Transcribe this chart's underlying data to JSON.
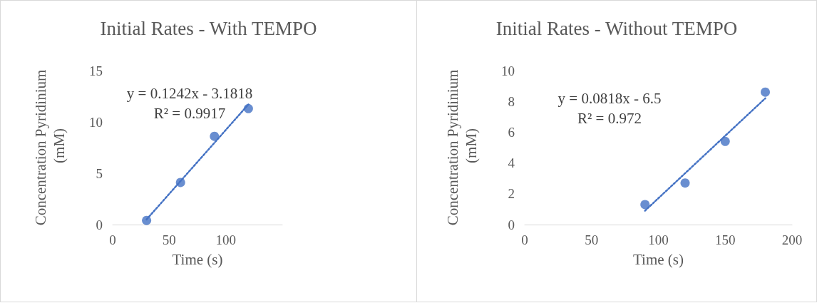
{
  "chart_data": [
    {
      "type": "scatter",
      "title": "Initial Rates - With TEMPO",
      "xlabel": "Time (s)",
      "ylabel": "Concentration Pyridinium (mM)",
      "xlim": [
        0,
        150
      ],
      "xticks": [
        0,
        50,
        100
      ],
      "ylim": [
        0,
        15
      ],
      "yticks": [
        0,
        5,
        10,
        15
      ],
      "grid": false,
      "marker": "circle",
      "annotations": [
        "y = 0.1242x - 3.1818",
        "R² = 0.9917"
      ],
      "series": [
        {
          "type": "scatter",
          "color": "#4472c4",
          "x": [
            30,
            60,
            90,
            120
          ],
          "values": [
            0.4,
            4.1,
            8.6,
            11.3
          ]
        },
        {
          "type": "line",
          "color": "#4472c4",
          "x": [
            30,
            120
          ],
          "values": [
            0.5,
            11.7
          ],
          "line_style": "dotted",
          "marker": "none"
        }
      ]
    },
    {
      "type": "scatter",
      "title": "Initial Rates - Without TEMPO",
      "xlabel": "Time (s)",
      "ylabel": "Concentration Pyridinium (mM)",
      "xlim": [
        0,
        200
      ],
      "xticks": [
        0,
        50,
        100,
        150,
        200
      ],
      "ylim": [
        0,
        10
      ],
      "yticks": [
        0,
        2,
        4,
        6,
        8,
        10
      ],
      "grid": false,
      "marker": "circle",
      "annotations": [
        "y = 0.0818x - 6.5",
        "R² = 0.972"
      ],
      "series": [
        {
          "type": "scatter",
          "color": "#4472c4",
          "x": [
            90,
            120,
            150,
            180
          ],
          "values": [
            1.3,
            2.7,
            5.4,
            8.6
          ]
        },
        {
          "type": "line",
          "color": "#4472c4",
          "x": [
            90,
            180
          ],
          "values": [
            0.9,
            8.2
          ],
          "line_style": "dotted",
          "marker": "none"
        }
      ]
    }
  ]
}
